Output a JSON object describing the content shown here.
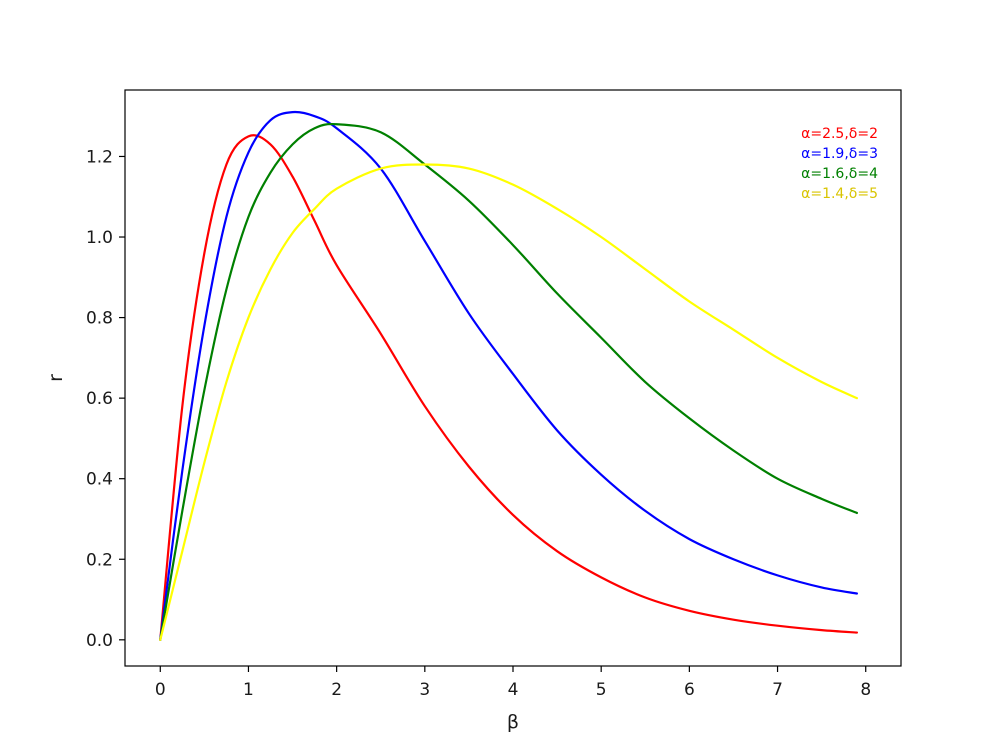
{
  "chart_data": {
    "type": "line",
    "title": "",
    "xlabel": "β",
    "ylabel": "r",
    "xlim": [
      -0.4,
      8.4
    ],
    "ylim": [
      -0.065,
      1.365
    ],
    "xticks": [
      0,
      1,
      2,
      3,
      4,
      5,
      6,
      7,
      8
    ],
    "xtick_labels": [
      "0",
      "1",
      "2",
      "3",
      "4",
      "5",
      "6",
      "7",
      "8"
    ],
    "yticks": [
      0.0,
      0.2,
      0.4,
      0.6,
      0.8,
      1.0,
      1.2
    ],
    "ytick_labels": [
      "0.0",
      "0.2",
      "0.4",
      "0.6",
      "0.8",
      "1.0",
      "1.2"
    ],
    "grid": false,
    "legend_position": "top-right",
    "x": [
      0,
      0.25,
      0.5,
      0.75,
      1.0,
      1.25,
      1.5,
      1.75,
      2.0,
      2.5,
      3.0,
      3.5,
      4.0,
      4.5,
      5.0,
      5.5,
      6.0,
      6.5,
      7.0,
      7.5,
      7.9
    ],
    "series": [
      {
        "name": "α=2.5,δ=2",
        "color": "#ff0000",
        "values": [
          0.0,
          0.58,
          0.96,
          1.18,
          1.25,
          1.23,
          1.15,
          1.04,
          0.93,
          0.76,
          0.58,
          0.43,
          0.31,
          0.22,
          0.155,
          0.105,
          0.072,
          0.05,
          0.035,
          0.024,
          0.018
        ]
      },
      {
        "name": "α=1.9,δ=3",
        "color": "#0000ff",
        "values": [
          0.0,
          0.42,
          0.78,
          1.05,
          1.21,
          1.29,
          1.31,
          1.3,
          1.27,
          1.17,
          0.99,
          0.81,
          0.66,
          0.52,
          0.41,
          0.32,
          0.25,
          0.2,
          0.16,
          0.13,
          0.115
        ]
      },
      {
        "name": "α=1.6,δ=4",
        "color": "#008000",
        "values": [
          0.0,
          0.32,
          0.62,
          0.87,
          1.05,
          1.16,
          1.23,
          1.27,
          1.28,
          1.26,
          1.18,
          1.09,
          0.98,
          0.86,
          0.75,
          0.64,
          0.55,
          0.47,
          0.4,
          0.35,
          0.315
        ]
      },
      {
        "name": "α=1.4,δ=5",
        "color": "#ffff00",
        "legend_text_color": "#d8c400",
        "values": [
          0.0,
          0.22,
          0.44,
          0.64,
          0.8,
          0.92,
          1.01,
          1.07,
          1.12,
          1.17,
          1.18,
          1.17,
          1.13,
          1.07,
          1.0,
          0.92,
          0.84,
          0.77,
          0.7,
          0.64,
          0.6
        ]
      }
    ]
  }
}
